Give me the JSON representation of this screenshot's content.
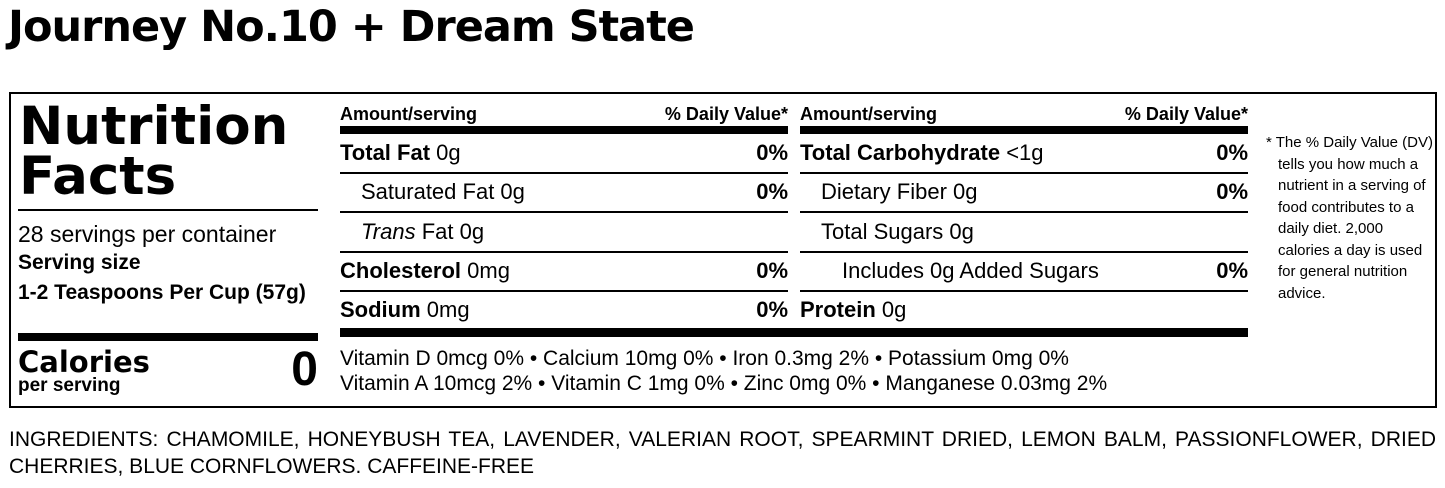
{
  "title": "Journey No.10 + Dream State",
  "label": {
    "heading": "Nutrition Facts",
    "servings": "28 servings per container",
    "serving_size_label": "Serving size",
    "serving_size": "1-2 Teaspoons Per Cup (57g)",
    "calories_label": "Calories",
    "calories_sub": "per serving",
    "calories": "0",
    "columns": [
      {
        "header_amount": "Amount/serving",
        "header_dv": "% Daily Value*",
        "rows": [
          {
            "name": "Total Fat",
            "amount": "0g",
            "dv": "0%"
          },
          {
            "name": "Saturated Fat 0g",
            "dv": "0%"
          },
          {
            "name_italic": "Trans",
            "name": "Fat 0g"
          },
          {
            "name": "Cholesterol",
            "amount": "0mg",
            "dv": "0%"
          },
          {
            "name": "Sodium",
            "amount": "0mg",
            "dv": "0%"
          }
        ]
      },
      {
        "header_amount": "Amount/serving",
        "header_dv": "% Daily Value*",
        "rows": [
          {
            "name": "Total Carbohydrate",
            "amount": "<1g",
            "dv": "0%"
          },
          {
            "name": "Dietary Fiber 0g",
            "dv": "0%"
          },
          {
            "name": "Total Sugars 0g"
          },
          {
            "name": "Includes 0g Added Sugars",
            "dv": "0%"
          },
          {
            "name": "Protein",
            "amount": "0g"
          }
        ]
      }
    ],
    "vitamins": [
      "Vitamin D 0mcg 0% • Calcium 10mg 0% • Iron 0.3mg 2% • Potassium 0mg 0%",
      "Vitamin A 10mcg 2% • Vitamin C 1mg 0% • Zinc 0mg 0% • Manganese 0.03mg 2%"
    ],
    "footnote": "* The % Daily Value (DV) tells you how much a nutrient in a serving of food contributes to a daily diet. 2,000 calories a day is used for general nutrition advice."
  },
  "ingredients": "INGREDIENTS: CHAMOMILE, HONEYBUSH TEA, LAVENDER, VALERIAN ROOT, SPEARMINT DRIED, LEMON BALM, PASSIONFLOWER, DRIED CHERRIES, BLUE CORNFLOWERS. CAFFEINE-FREE"
}
